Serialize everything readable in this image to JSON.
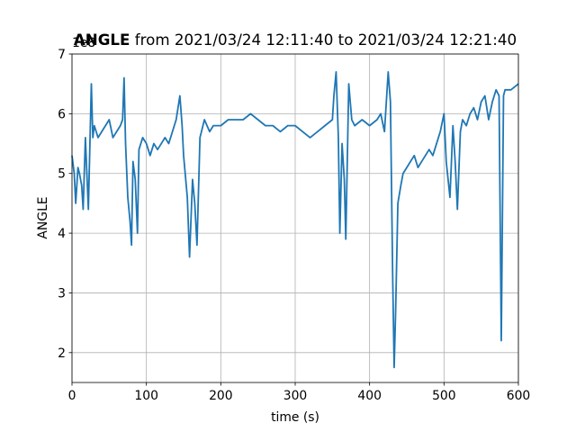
{
  "chart_data": {
    "type": "line",
    "title_bold": "ANGLE",
    "title": "from 2021/03/24 12:11:40 to 2021/03/24 12:21:40",
    "xlabel": "time (s)",
    "ylabel": "ANGLE",
    "offset_text": "1e8",
    "xlim": [
      0,
      600
    ],
    "ylim": [
      1.5,
      7
    ],
    "xticks": [
      0,
      100,
      200,
      300,
      400,
      500,
      600
    ],
    "yticks": [
      2,
      3,
      4,
      5,
      6,
      7
    ],
    "grid": true,
    "series": [
      {
        "name": "ANGLE",
        "color": "#1f77b4",
        "x": [
          0,
          3,
          5,
          8,
          10,
          13,
          15,
          18,
          20,
          22,
          26,
          28,
          30,
          35,
          40,
          45,
          50,
          55,
          60,
          65,
          68,
          70,
          72,
          75,
          78,
          80,
          82,
          85,
          88,
          90,
          95,
          100,
          105,
          110,
          115,
          120,
          125,
          130,
          135,
          140,
          145,
          148,
          150,
          155,
          158,
          162,
          165,
          168,
          172,
          178,
          185,
          190,
          200,
          210,
          220,
          230,
          240,
          250,
          260,
          270,
          280,
          290,
          300,
          310,
          320,
          330,
          340,
          350,
          352,
          355,
          358,
          360,
          363,
          366,
          368,
          372,
          376,
          380,
          390,
          400,
          410,
          415,
          420,
          425,
          428,
          431,
          433,
          435,
          438,
          442,
          445,
          450,
          455,
          460,
          465,
          470,
          475,
          480,
          485,
          490,
          495,
          500,
          503,
          508,
          512,
          515,
          518,
          522,
          525,
          530,
          535,
          540,
          545,
          550,
          555,
          560,
          565,
          570,
          574,
          577,
          580,
          582,
          590,
          600
        ],
        "values": [
          5.3,
          5.0,
          4.5,
          5.1,
          5.0,
          4.8,
          4.4,
          5.6,
          5.0,
          4.4,
          6.5,
          5.6,
          5.8,
          5.6,
          5.7,
          5.8,
          5.9,
          5.6,
          5.7,
          5.8,
          5.9,
          6.6,
          5.5,
          4.6,
          4.2,
          3.8,
          5.2,
          4.9,
          4.0,
          5.4,
          5.6,
          5.5,
          5.3,
          5.5,
          5.4,
          5.5,
          5.6,
          5.5,
          5.7,
          5.9,
          6.3,
          5.8,
          5.3,
          4.6,
          3.6,
          4.9,
          4.5,
          3.8,
          5.6,
          5.9,
          5.7,
          5.8,
          5.8,
          5.9,
          5.9,
          5.9,
          6.0,
          5.9,
          5.8,
          5.8,
          5.7,
          5.8,
          5.8,
          5.7,
          5.6,
          5.7,
          5.8,
          5.9,
          6.3,
          6.7,
          5.6,
          4.0,
          5.5,
          4.9,
          3.9,
          6.5,
          5.9,
          5.8,
          5.9,
          5.8,
          5.9,
          6.0,
          5.7,
          6.7,
          6.2,
          3.3,
          1.75,
          2.7,
          4.5,
          4.8,
          5.0,
          5.1,
          5.2,
          5.3,
          5.1,
          5.2,
          5.3,
          5.4,
          5.3,
          5.5,
          5.7,
          6.0,
          5.2,
          4.6,
          5.8,
          5.2,
          4.4,
          5.7,
          5.9,
          5.8,
          6.0,
          6.1,
          5.9,
          6.2,
          6.3,
          5.9,
          6.2,
          6.4,
          6.3,
          2.2,
          6.3,
          6.4,
          6.4,
          6.5
        ]
      }
    ]
  }
}
